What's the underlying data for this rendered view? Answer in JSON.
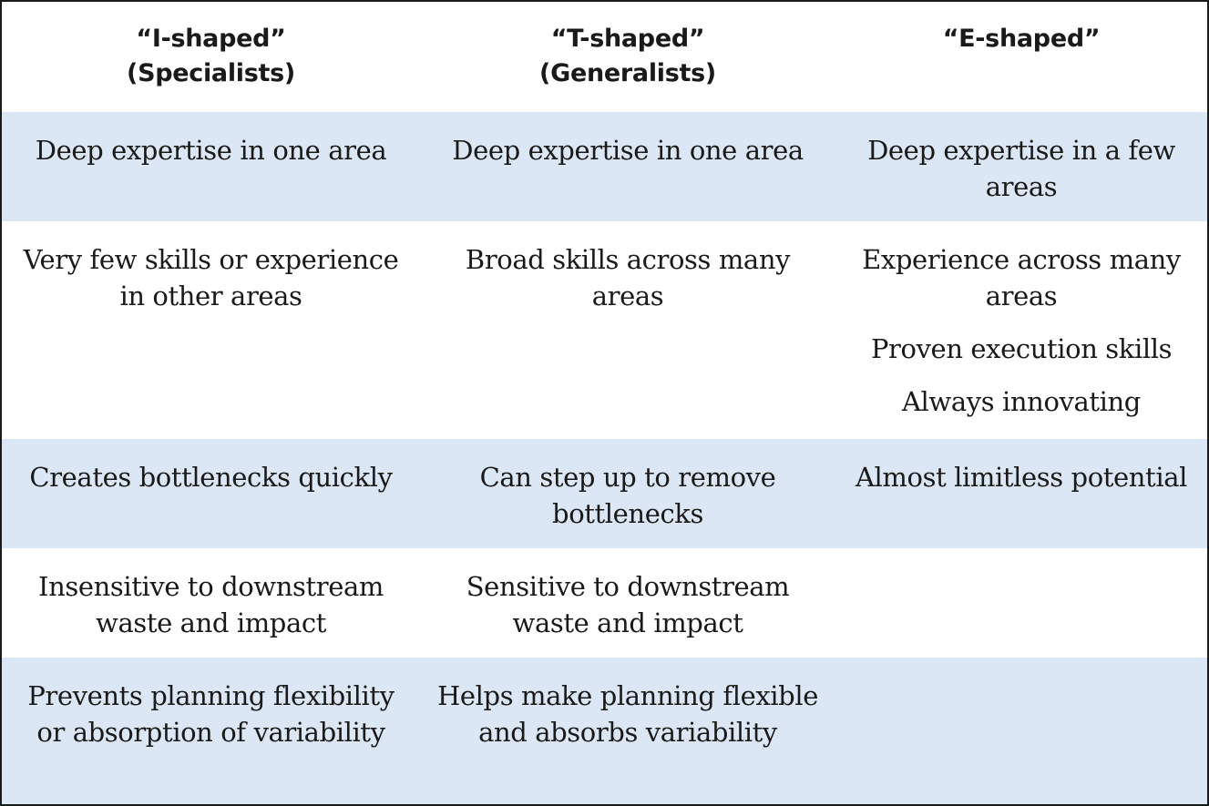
{
  "headers": [
    {
      "title": "“I-shaped”",
      "subtitle": "(Specialists)"
    },
    {
      "title": "“T-shaped”",
      "subtitle": "(Generalists)"
    },
    {
      "title": "“E-shaped”",
      "subtitle": ""
    }
  ],
  "rows": [
    {
      "i_shaped": "Deep expertise in one area",
      "t_shaped": "Deep expertise in one area",
      "e_shaped": [
        "Deep expertise in a few areas"
      ]
    },
    {
      "i_shaped": "Very few skills or experience in other areas",
      "t_shaped": "Broad skills across many areas",
      "e_shaped": [
        "Experience across many areas",
        "Proven execution skills",
        "Always innovating"
      ]
    },
    {
      "i_shaped": "Creates bottlenecks quickly",
      "t_shaped": "Can step up to remove bottlenecks",
      "e_shaped": [
        "Almost limitless potential"
      ]
    },
    {
      "i_shaped": "Insensitive to downstream waste and impact",
      "t_shaped": "Sensitive to downstream waste and impact",
      "e_shaped": []
    },
    {
      "i_shaped": "Prevents planning flexibility or absorption of variability",
      "t_shaped": "Helps make planning flexible and absorbs variability",
      "e_shaped": []
    }
  ]
}
